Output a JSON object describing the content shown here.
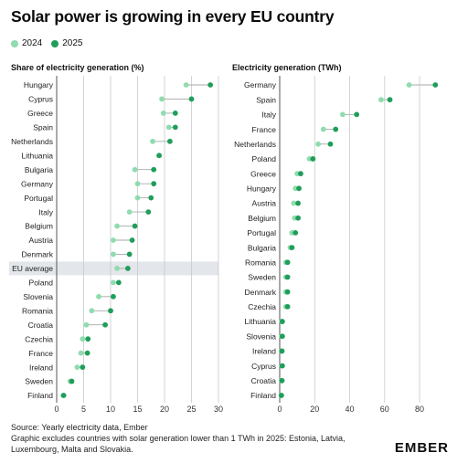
{
  "title": "Solar power is growing in every EU country",
  "legend": [
    {
      "label": "2024",
      "color": "#8fdcae"
    },
    {
      "label": "2025",
      "color": "#1f9e5a"
    }
  ],
  "chart_data": [
    {
      "type": "dot",
      "title": "Share of electricity generation (%)",
      "xlim": [
        0,
        30
      ],
      "xticks": [
        0,
        5,
        10,
        15,
        20,
        25,
        30
      ],
      "highlight": "EU average",
      "categories": [
        "Hungary",
        "Cyprus",
        "Greece",
        "Spain",
        "Netherlands",
        "Lithuania",
        "Bulgaria",
        "Germany",
        "Portugal",
        "Italy",
        "Belgium",
        "Austria",
        "Denmark",
        "EU average",
        "Poland",
        "Slovenia",
        "Romania",
        "Croatia",
        "Czechia",
        "France",
        "Ireland",
        "Sweden",
        "Finland"
      ],
      "series": [
        {
          "name": "2024",
          "values": [
            24.0,
            19.5,
            19.8,
            20.8,
            17.8,
            19.0,
            14.5,
            15.0,
            15.0,
            13.5,
            11.2,
            10.5,
            10.5,
            11.2,
            10.5,
            7.8,
            6.5,
            5.5,
            4.8,
            4.5,
            3.8,
            2.5,
            1.2
          ]
        },
        {
          "name": "2025",
          "values": [
            28.5,
            25.0,
            22.0,
            22.0,
            21.0,
            19.0,
            18.0,
            18.0,
            17.5,
            17.0,
            14.5,
            14.0,
            13.5,
            13.2,
            11.5,
            10.5,
            10.0,
            9.0,
            5.8,
            5.7,
            4.8,
            2.8,
            1.3
          ]
        }
      ]
    },
    {
      "type": "dot",
      "title": "Electricity generation (TWh)",
      "xlim": [
        0,
        92
      ],
      "xticks": [
        0,
        20,
        40,
        60,
        80
      ],
      "categories": [
        "Germany",
        "Spain",
        "Italy",
        "France",
        "Netherlands",
        "Poland",
        "Greece",
        "Hungary",
        "Austria",
        "Belgium",
        "Portugal",
        "Bulgaria",
        "Romania",
        "Sweden",
        "Denmark",
        "Czechia",
        "Lithuania",
        "Slovenia",
        "Ireland",
        "Cyprus",
        "Croatia",
        "Finland"
      ],
      "series": [
        {
          "name": "2024",
          "values": [
            74,
            58,
            36,
            25,
            22,
            17,
            10,
            9,
            8,
            8.5,
            7,
            6,
            3.5,
            3.5,
            3.5,
            3.5,
            1.2,
            1.2,
            1.0,
            1.3,
            1.0,
            0.8
          ]
        },
        {
          "name": "2025",
          "values": [
            89,
            63,
            44,
            32,
            29,
            19,
            12,
            11,
            10.5,
            10.5,
            9,
            7,
            4.5,
            4.5,
            4.5,
            4.5,
            1.5,
            1.5,
            1.3,
            1.5,
            1.3,
            1.0
          ]
        }
      ]
    }
  ],
  "footer": {
    "line1": "Source: Yearly electricity data, Ember",
    "line2": "Graphic excludes countries with solar generation lower than 1 TWh in 2025: Estonia, Latvia,",
    "line3": "Luxembourg, Malta and Slovakia."
  },
  "logo": "EMBER"
}
